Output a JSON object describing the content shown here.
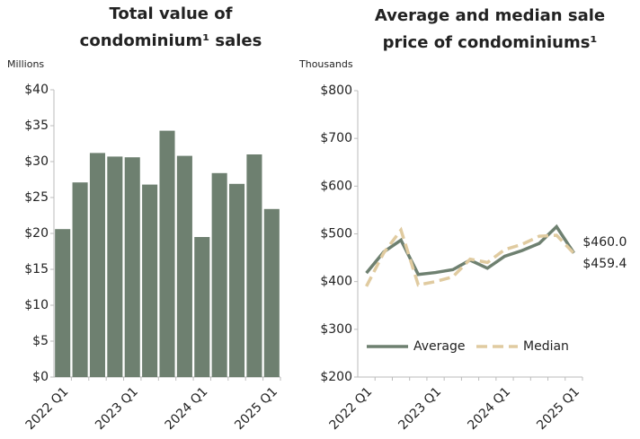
{
  "chart_data": [
    {
      "type": "bar",
      "title": [
        "Total value of",
        "condominium¹ sales"
      ],
      "y_label": "Millions",
      "categories": [
        "2022 Q1",
        null,
        null,
        null,
        "2023 Q1",
        null,
        null,
        null,
        "2024 Q1",
        null,
        null,
        null,
        "2025 Q1"
      ],
      "values": [
        20.6,
        27.1,
        31.2,
        30.7,
        30.6,
        26.8,
        34.3,
        30.8,
        19.5,
        28.4,
        26.9,
        31.0,
        23.4
      ],
      "color": "#6e8070",
      "ylim": [
        0,
        40
      ],
      "yticks": [
        {
          "value": 0,
          "label": "$0"
        },
        {
          "value": 5,
          "label": "$5"
        },
        {
          "value": 10,
          "label": "$10"
        },
        {
          "value": 15,
          "label": "$15"
        },
        {
          "value": 20,
          "label": "$20"
        },
        {
          "value": 25,
          "label": "$25"
        },
        {
          "value": 30,
          "label": "$30"
        },
        {
          "value": 35,
          "label": "$35"
        },
        {
          "value": 40,
          "label": "$40"
        }
      ]
    },
    {
      "type": "line",
      "title": [
        "Average and median sale",
        "price of condominiums¹"
      ],
      "y_label": "Thousands",
      "categories": [
        "2022 Q1",
        null,
        null,
        null,
        "2023 Q1",
        null,
        null,
        null,
        "2024 Q1",
        null,
        null,
        null,
        "2025 Q1"
      ],
      "series": [
        {
          "name": "Average",
          "color": "#6e8070",
          "dash": false,
          "values": [
            418,
            462,
            487,
            415,
            419,
            425,
            445,
            428,
            453,
            465,
            480,
            515,
            460.0
          ],
          "value_labels": [
            null,
            null,
            null,
            null,
            null,
            null,
            null,
            null,
            null,
            null,
            null,
            null,
            "$460.0"
          ]
        },
        {
          "name": "Median",
          "color": "#e0cba0",
          "dash": true,
          "values": [
            390,
            460,
            508,
            393,
            400,
            410,
            447,
            440,
            467,
            478,
            495,
            497,
            459.4
          ],
          "value_labels": [
            null,
            null,
            null,
            null,
            null,
            null,
            null,
            null,
            null,
            null,
            null,
            null,
            "$459.4"
          ]
        }
      ],
      "legend": "lower left",
      "ylim": [
        200,
        800
      ],
      "yticks": [
        {
          "value": 200,
          "label": "$200"
        },
        {
          "value": 300,
          "label": "$300"
        },
        {
          "value": 400,
          "label": "$400"
        },
        {
          "value": 500,
          "label": "$500"
        },
        {
          "value": 600,
          "label": "$600"
        },
        {
          "value": 700,
          "label": "$700"
        },
        {
          "value": 800,
          "label": "$800"
        }
      ]
    }
  ]
}
